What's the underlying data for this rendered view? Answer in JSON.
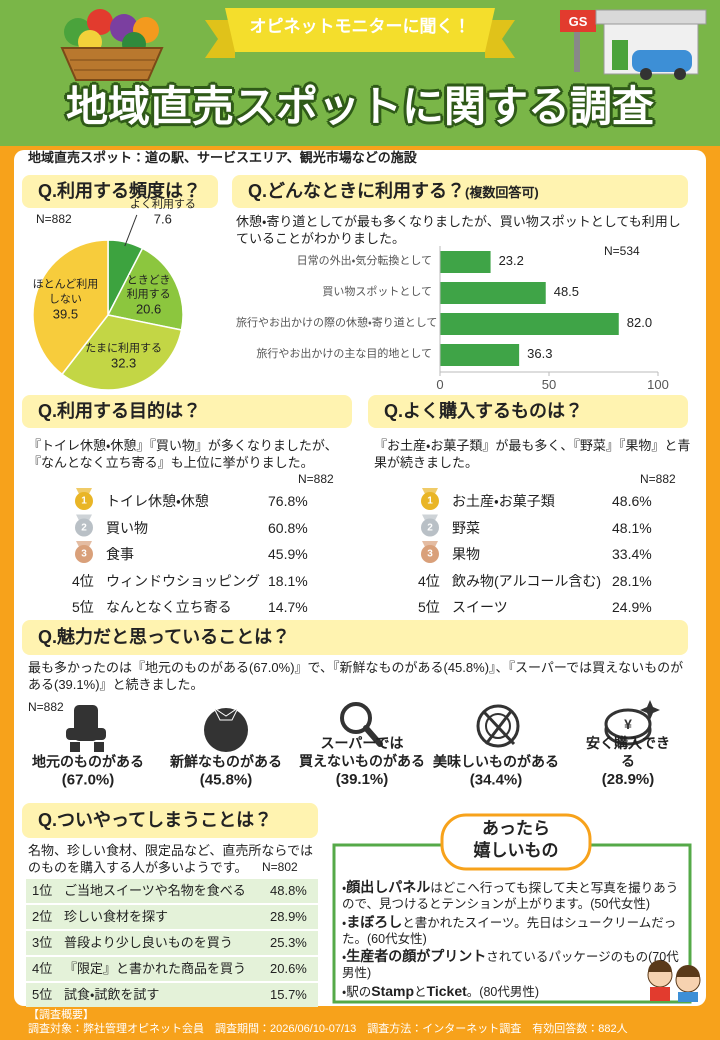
{
  "header": {
    "badge": "オピネットモニターに聞く！",
    "title": "地域直売スポットに関する調査"
  },
  "definition": "地域直売スポット：道の駅、サービスエリア、観光市場などの施設",
  "chart_data": [
    {
      "type": "pie",
      "title": "Q.利用する頻度は？",
      "note": "N=882",
      "categories": [
        "よく利用する",
        "ときどき\n利用する",
        "たまに利用する",
        "ほとんど利用\nしない"
      ],
      "values": [
        7.6,
        20.6,
        32.3,
        39.5
      ],
      "colors": [
        "#3da33f",
        "#8cc63e",
        "#c3d645",
        "#f7cc3c"
      ]
    },
    {
      "type": "bar",
      "orientation": "horizontal",
      "title": "Q.どんなときに利用する？",
      "subtitle": "(複数回答可)",
      "description": "休憩・寄り道としてが最も多くなりましたが、買い物スポットとしても利用していることがわかりました。",
      "note": "N=534",
      "categories": [
        "日常の外出・気分転換として",
        "買い物スポットとして",
        "旅行やお出かけの際の休憩・寄り道として",
        "旅行やお出かけの主な目的地として"
      ],
      "values": [
        23.2,
        48.5,
        82.0,
        36.3
      ],
      "value_labels": [
        "23.2",
        "48.5",
        "82.0",
        "36.3"
      ],
      "color": "#3fa447",
      "xlim": [
        0,
        100
      ],
      "xticks": [
        0,
        50,
        100
      ]
    }
  ],
  "purpose": {
    "title": "Q.利用する目的は？",
    "description": "『トイレ休憩・休憩』『買い物』が多くなりましたが、\n『なんとなく立ち寄る』も上位に挙がりました。",
    "note": "N=882",
    "rows": [
      {
        "rank": "1",
        "medal": "#e9b526",
        "item": "トイレ休憩・休憩",
        "percent": "76.8%"
      },
      {
        "rank": "2",
        "medal": "#b9c0c6",
        "item": "買い物",
        "percent": "60.8%"
      },
      {
        "rank": "3",
        "medal": "#d9a07a",
        "item": "食事",
        "percent": "45.9%"
      },
      {
        "rank": "4位",
        "item": "ウィンドウショッピング",
        "percent": "18.1%"
      },
      {
        "rank": "5位",
        "item": "なんとなく立ち寄る",
        "percent": "14.7%"
      }
    ]
  },
  "purchase": {
    "title": "Q.よく購入するものは？",
    "description": "『お土産・お菓子類』が最も多く、『野菜』『果物』と青果が続きました。",
    "note": "N=882",
    "rows": [
      {
        "rank": "1",
        "medal": "#e9b526",
        "item": "お土産・お菓子類",
        "percent": "48.6%"
      },
      {
        "rank": "2",
        "medal": "#b9c0c6",
        "item": "野菜",
        "percent": "48.1%"
      },
      {
        "rank": "3",
        "medal": "#d9a07a",
        "item": "果物",
        "percent": "33.4%"
      },
      {
        "rank": "4位",
        "item": "飲み物(アルコール含む)",
        "percent": "28.1%"
      },
      {
        "rank": "5位",
        "item": "スイーツ",
        "percent": "24.9%"
      }
    ]
  },
  "attraction": {
    "title": "Q.魅力だと思っていることは？",
    "description": "最も多かったのは『地元のものがある(67.0%)』で、『新鮮なものがある(45.8%)』、『スーパーでは買えないものがある(39.1%)』と続きました。",
    "note": "N=882",
    "items": [
      {
        "label": "地元のものがある",
        "percent": "(67.0%)"
      },
      {
        "label": "新鮮なものがある",
        "percent": "(45.8%)"
      },
      {
        "label": "スーパーでは\n買えないものがある",
        "percent": "(39.1%)"
      },
      {
        "label": "美味しいものがある",
        "percent": "(34.4%)"
      },
      {
        "label": "安く購入できる",
        "percent": "(28.9%)"
      }
    ]
  },
  "habits": {
    "title": "Q.ついやってしまうことは？",
    "description": "名物、珍しい食材、限定品など、直売所ならではのものを購入する人が多いようです。",
    "note": "N=802",
    "rows": [
      {
        "rank": "1位",
        "item": "ご当地スイーツや名物を食べる",
        "percent": "48.8%"
      },
      {
        "rank": "2位",
        "item": "珍しい食材を探す",
        "percent": "28.9%"
      },
      {
        "rank": "3位",
        "item": "普段より少し良いものを買う",
        "percent": "25.3%"
      },
      {
        "rank": "4位",
        "item": "『限定』と書かれた商品を買う",
        "percent": "20.6%"
      },
      {
        "rank": "5位",
        "item": "試食・試飲を試す",
        "percent": "15.7%"
      }
    ]
  },
  "wishes": {
    "title": "あったら\n嬉しいもの",
    "items": [
      [
        {
          "text": "・"
        },
        {
          "text": "顔出しパネル",
          "bold": true
        },
        {
          "text": "はどこへ行っても探して夫と写真を撮りあうので、見つけるとテンションが上がります。(50代女性)"
        }
      ],
      [
        {
          "text": "・"
        },
        {
          "text": "まぼろし",
          "bold": true
        },
        {
          "text": "と書かれたスイーツ。先日はシュークリームだった。(60代女性)"
        }
      ],
      [
        {
          "text": "・"
        },
        {
          "text": "生産者の顔がプリント",
          "bold": true
        },
        {
          "text": "されているパッケージのもの(70代男性)"
        }
      ],
      [
        {
          "text": "・駅の"
        },
        {
          "text": "Stamp",
          "bold": true
        },
        {
          "text": "と"
        },
        {
          "text": "Ticket",
          "bold": true
        },
        {
          "text": "。(80代男性)"
        }
      ]
    ]
  },
  "footer": {
    "title": "【調査概要】",
    "text": "調査対象：弊社管理オピネット会員　調査期間：2026/06/10-07/13　調査方法：インターネット調査　有効回答数：882人"
  }
}
